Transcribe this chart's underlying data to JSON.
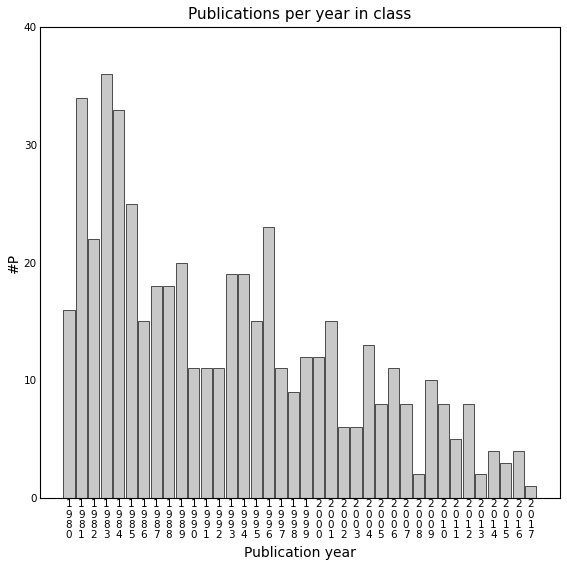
{
  "title": "Publications per year in class",
  "xlabel": "Publication year",
  "ylabel": "#P",
  "years": [
    "1980",
    "1981",
    "1982",
    "1983",
    "1984",
    "1985",
    "1986",
    "1987",
    "1988",
    "1989",
    "1990",
    "1991",
    "1992",
    "1993",
    "1994",
    "1995",
    "1996",
    "1997",
    "1998",
    "1999",
    "2000",
    "2001",
    "2002",
    "2003",
    "2004",
    "2005",
    "2006",
    "2007",
    "2008",
    "2009",
    "2010",
    "2011",
    "2012",
    "2013",
    "2014",
    "2015",
    "2016",
    "2017"
  ],
  "values": [
    16,
    34,
    22,
    36,
    33,
    25,
    15,
    18,
    18,
    20,
    11,
    11,
    11,
    19,
    19,
    15,
    23,
    11,
    9,
    12,
    12,
    15,
    6,
    6,
    13,
    8,
    11,
    8,
    2,
    10,
    8,
    5,
    8,
    2,
    4,
    3,
    4,
    1
  ],
  "bar_color": "#c8c8c8",
  "bar_edgecolor": "#333333",
  "ylim": [
    0,
    40
  ],
  "yticks": [
    0,
    10,
    20,
    30,
    40
  ],
  "background_color": "#ffffff",
  "title_fontsize": 11,
  "axis_label_fontsize": 10,
  "tick_fontsize": 7.5
}
